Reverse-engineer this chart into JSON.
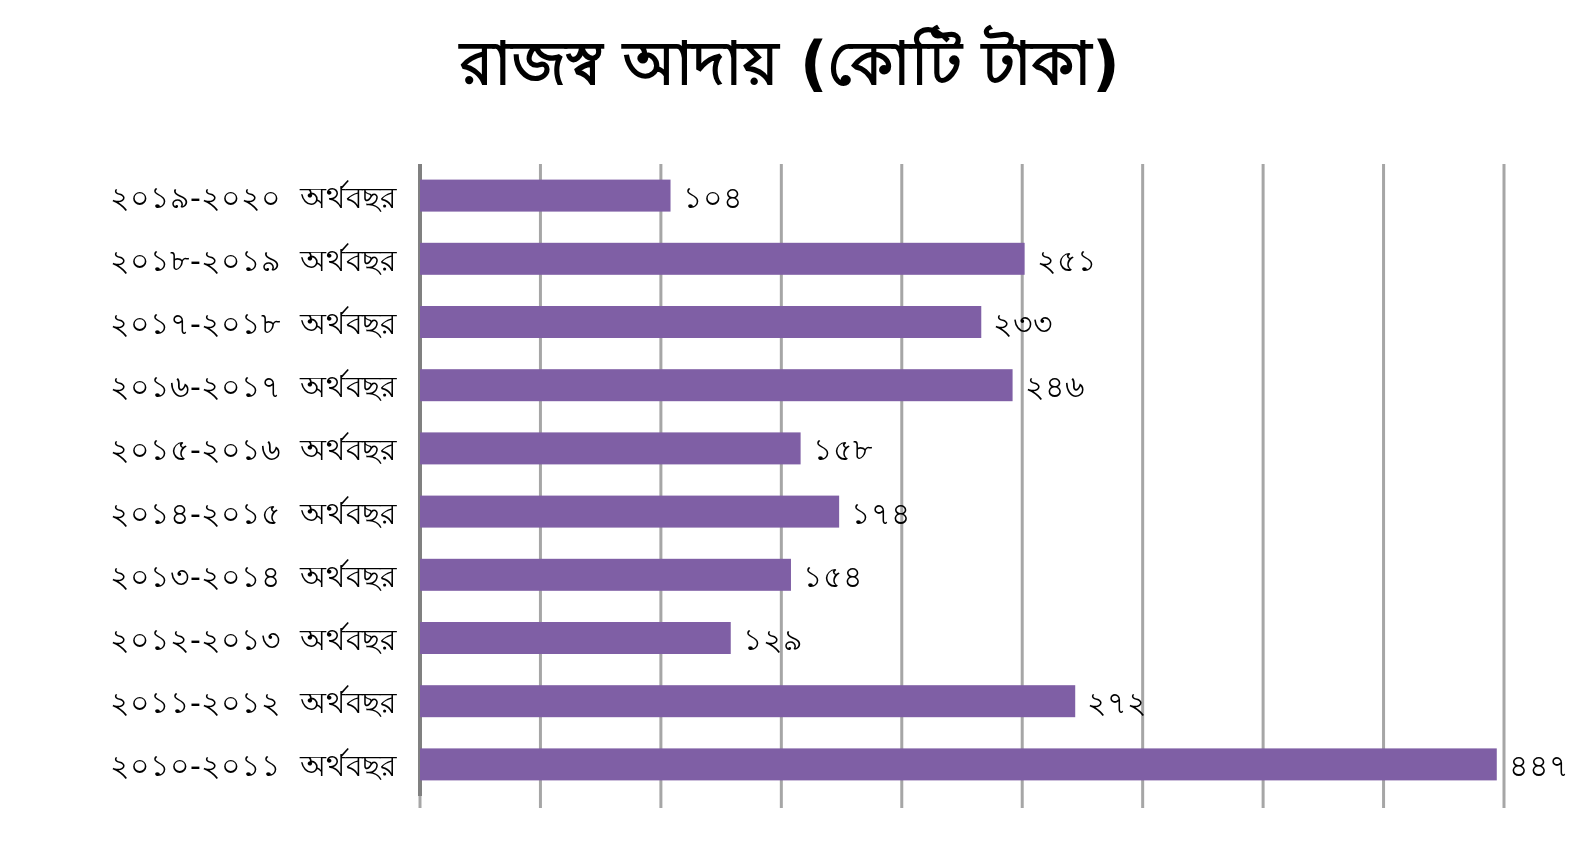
{
  "chart_data": {
    "type": "bar",
    "orientation": "horizontal",
    "title": "রাজস্ব আদায় (কোটি টাকা)",
    "categories": [
      "২০১৯-২০২০  অর্থবছর",
      "২০১৮-২০১৯  অর্থবছর",
      "২০১৭-২০১৮  অর্থবছর",
      "২০১৬-২০১৭  অর্থবছর",
      "২০১৫-২০১৬  অর্থবছর",
      "২০১৪-২০১৫  অর্থবছর",
      "২০১৩-২০১৪  অর্থবছর",
      "২০১২-২০১৩  অর্থবছর",
      "২০১১-২০১২  অর্থবছর",
      "২০১০-২০১১  অর্থবছর"
    ],
    "values": [
      104,
      251,
      233,
      246,
      158,
      174,
      154,
      129,
      272,
      447
    ],
    "value_labels": [
      "১০৪",
      "২৫১",
      "২৩৩",
      "২৪৬",
      "১৫৮",
      "১৭৪",
      "১৫৪",
      "১২৯",
      "২৭২",
      "৪৪৭"
    ],
    "color": "#7f5fa5",
    "xlim": [
      0,
      450
    ],
    "xticks": [
      {
        "value": 0,
        "label": null
      },
      {
        "value": 50,
        "label": null
      },
      {
        "value": 100,
        "label": null
      },
      {
        "value": 150,
        "label": null
      },
      {
        "value": 200,
        "label": null
      },
      {
        "value": 250,
        "label": null
      },
      {
        "value": 300,
        "label": null
      },
      {
        "value": 350,
        "label": null
      },
      {
        "value": 400,
        "label": null
      },
      {
        "value": 450,
        "label": null
      }
    ],
    "grid": "x",
    "tick_labels": "y"
  }
}
